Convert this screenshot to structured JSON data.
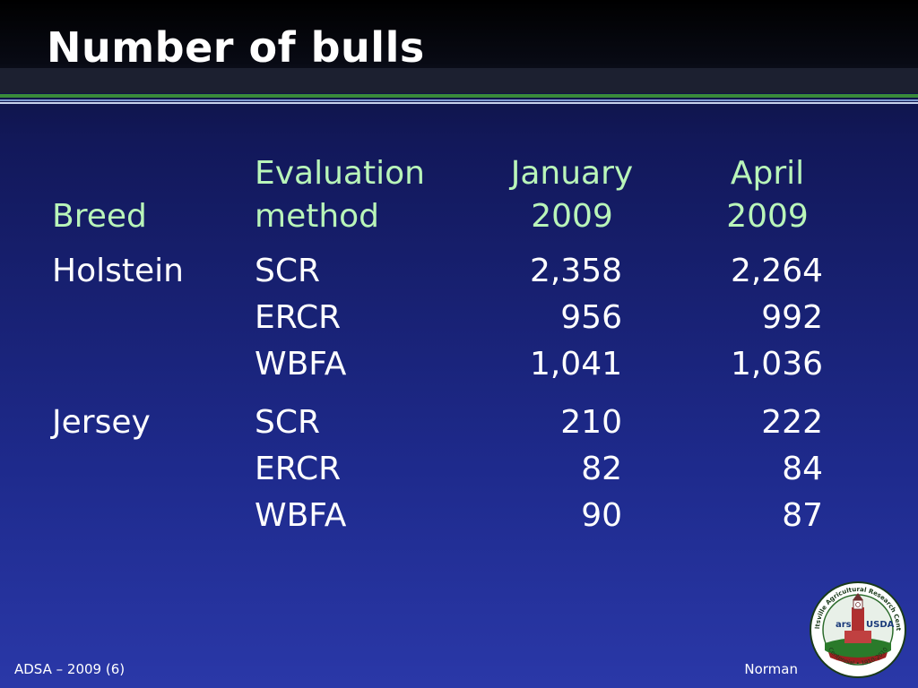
{
  "slide": {
    "title": "Number of bulls"
  },
  "table": {
    "headers": {
      "breed": "Breed",
      "method_line1": "Evaluation",
      "method_line2": "method",
      "jan_line1": "January",
      "jan_line2": "2009",
      "apr_line1": "April",
      "apr_line2": "2009"
    },
    "groups": [
      {
        "breed": "Holstein",
        "rows": [
          {
            "method": "SCR",
            "jan": "2,358",
            "apr": "2,264"
          },
          {
            "method": "ERCR",
            "jan": "956",
            "apr": "992"
          },
          {
            "method": "WBFA",
            "jan": "1,041",
            "apr": "1,036"
          }
        ]
      },
      {
        "breed": "Jersey",
        "rows": [
          {
            "method": "SCR",
            "jan": "210",
            "apr": "222"
          },
          {
            "method": "ERCR",
            "jan": "82",
            "apr": "84"
          },
          {
            "method": "WBFA",
            "jan": "90",
            "apr": "87"
          }
        ]
      }
    ]
  },
  "footer": {
    "left": "ADSA – 2009 (6)",
    "right": "Norman"
  },
  "logo": {
    "icon": "barc-usda-seal-icon",
    "ring_text": "Beltsville Agricultural Research Center",
    "bottom_text": "Centennial • 1910-2010",
    "usda": "USDA",
    "ars": "ars"
  },
  "colors": {
    "header_text": "#b9f5b9",
    "body_text": "#ffffff",
    "rule_green": "#3a8a3a"
  }
}
